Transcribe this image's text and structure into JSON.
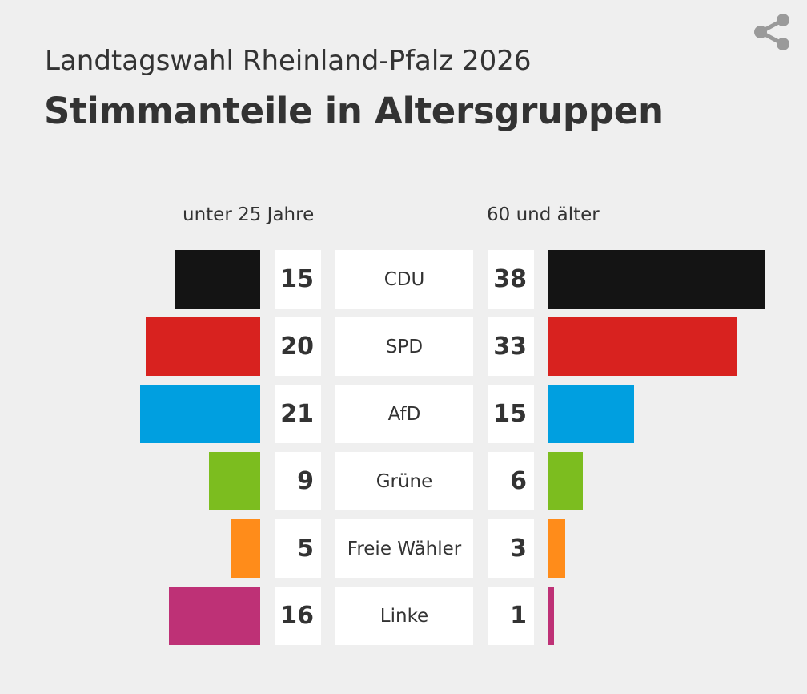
{
  "header": {
    "subtitle": "Landtagswahl Rheinland-Pfalz 2026",
    "title": "Stimmanteile in Altersgruppen"
  },
  "share_icon": "share-icon",
  "chart_data": {
    "type": "bar",
    "layout": "diverging-butterfly",
    "title": "Stimmanteile in Altersgruppen",
    "subtitle": "Landtagswahl Rheinland-Pfalz 2026",
    "categories": [
      "CDU",
      "SPD",
      "AfD",
      "Grüne",
      "Freie Wähler",
      "Linke"
    ],
    "colors": [
      "#141414",
      "#d8221f",
      "#009fe0",
      "#7cbd1f",
      "#ff8c1a",
      "#be3176"
    ],
    "series": [
      {
        "name": "unter 25 Jahre",
        "values": [
          15,
          20,
          21,
          9,
          5,
          16
        ]
      },
      {
        "name": "60 und älter",
        "values": [
          38,
          33,
          15,
          6,
          3,
          1
        ]
      }
    ],
    "unit": "%",
    "xlabel": "",
    "ylabel": "",
    "ylim": [
      0,
      38
    ]
  }
}
